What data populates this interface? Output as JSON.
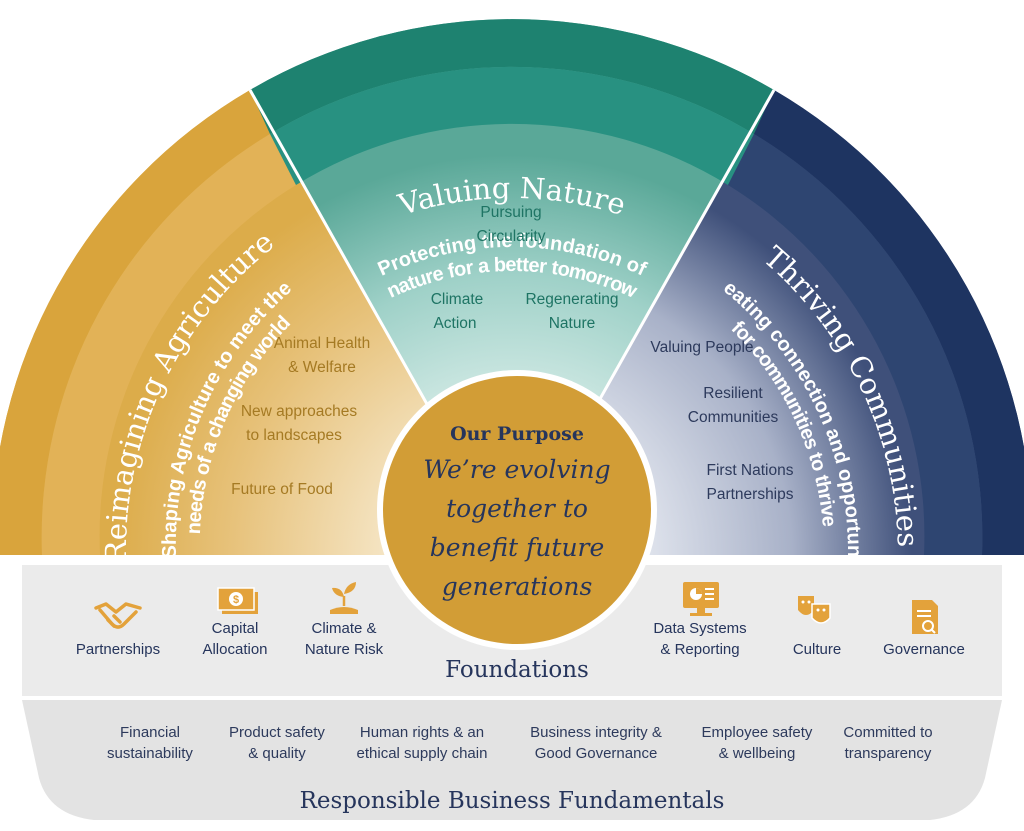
{
  "pillars": {
    "agriculture": {
      "title": "Reimagining Agriculture",
      "subtitle_line1": "Shaping Agriculture to meet the",
      "subtitle_line2": "needs of a changing world",
      "items": [
        {
          "line1": "Animal Health",
          "line2": "& Welfare"
        },
        {
          "line1": "New approaches",
          "line2": "to landscapes"
        },
        {
          "line1": "Future of Food",
          "line2": ""
        }
      ]
    },
    "nature": {
      "title": "Valuing Nature",
      "subtitle_line1": "Protecting the foundation of",
      "subtitle_line2": "nature for a better tomorrow",
      "items": [
        {
          "line1": "Pursuing",
          "line2": "Circularity"
        },
        {
          "line1": "Climate",
          "line2": "Action"
        },
        {
          "line1": "Regenerating",
          "line2": "Nature"
        }
      ]
    },
    "communities": {
      "title": "Thriving Communities",
      "subtitle_line1": "Creating connection and opportunity",
      "subtitle_line2": "for communities to thrive",
      "items": [
        {
          "line1": "Valuing People",
          "line2": ""
        },
        {
          "line1": "Resilient",
          "line2": "Communities"
        },
        {
          "line1": "First Nations",
          "line2": "Partnerships"
        }
      ]
    }
  },
  "purpose": {
    "heading": "Our Purpose",
    "lines": [
      "We’re evolving",
      "together to",
      "benefit future",
      "generations"
    ]
  },
  "foundations": {
    "title": "Foundations",
    "items": [
      {
        "icon": "handshake-icon",
        "line1": "Partnerships",
        "line2": ""
      },
      {
        "icon": "money-stack-icon",
        "line1": "Capital",
        "line2": "Allocation"
      },
      {
        "icon": "seedling-icon",
        "line1": "Climate &",
        "line2": "Nature Risk"
      },
      {
        "icon": "monitor-chart-icon",
        "line1": "Data Systems",
        "line2": "& Reporting"
      },
      {
        "icon": "theatre-masks-icon",
        "line1": "Culture",
        "line2": ""
      },
      {
        "icon": "document-magnifier-icon",
        "line1": "Governance",
        "line2": ""
      }
    ]
  },
  "fundamentals": {
    "title": "Responsible Business Fundamentals",
    "items": [
      {
        "line1": "Financial",
        "line2": "sustainability"
      },
      {
        "line1": "Product safety",
        "line2": "& quality"
      },
      {
        "line1": "Human rights & an",
        "line2": "ethical supply chain"
      },
      {
        "line1": "Business integrity &",
        "line2": "Good Governance"
      },
      {
        "line1": "Employee safety",
        "line2": "& wellbeing"
      },
      {
        "line1": "Committed to",
        "line2": "transparency"
      }
    ]
  },
  "colors": {
    "gold": "#d9a43c",
    "teal": "#1e8270",
    "navy": "#1e3461",
    "purpose_gold": "#d29d36",
    "foundation_icon": "#e3a23b",
    "text_dark": "#26355c"
  }
}
